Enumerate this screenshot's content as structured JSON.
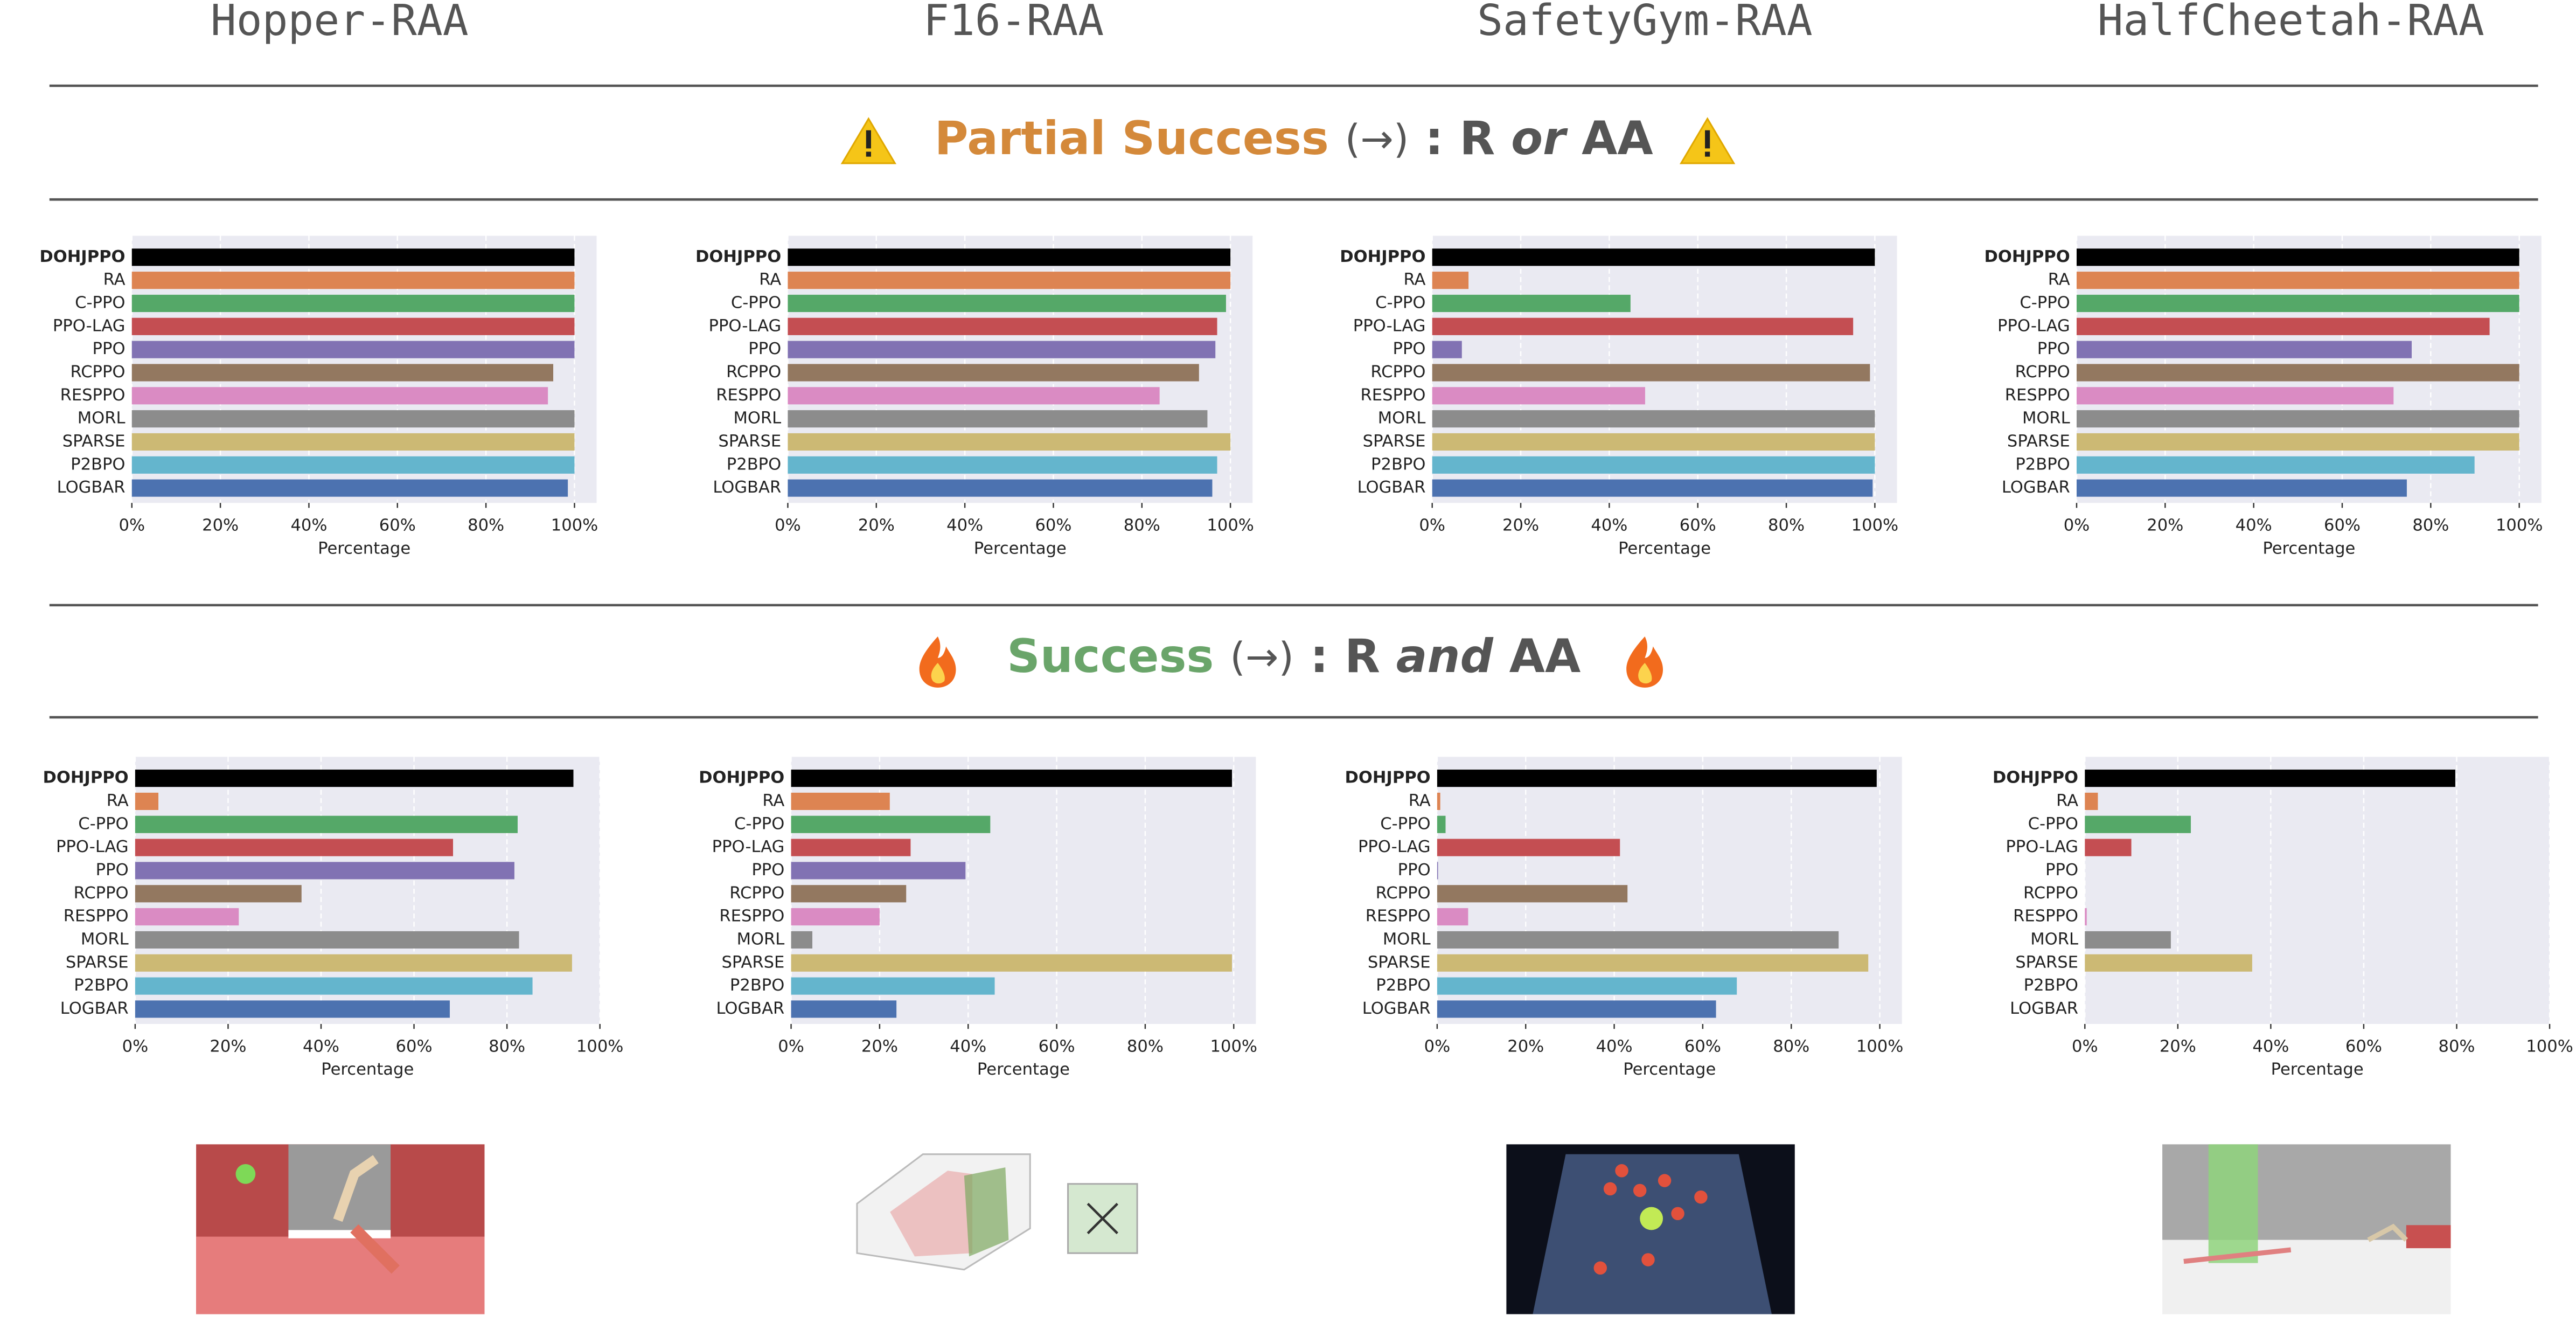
{
  "columns": [
    "Hopper-RAA",
    "F16-RAA",
    "SafetyGym-RAA",
    "HalfCheetah-RAA"
  ],
  "sections": [
    {
      "label": "Partial Success",
      "arrow": "(→)",
      "left": ": R",
      "connector": "or",
      "right": "AA"
    },
    {
      "label": "Success",
      "arrow": "(→)",
      "left": ": R",
      "connector": "and",
      "right": "AA"
    }
  ],
  "chart_data": [
    {
      "type": "barh",
      "categories": [
        "DOHJPPO",
        "RA",
        "C-PPO",
        "PPO-LAG",
        "PPO",
        "RCPPO",
        "RESPPO",
        "MORL",
        "SPARSE",
        "P2BPO",
        "LOGBAR"
      ],
      "values": [
        100,
        100,
        100,
        100,
        100,
        95.2,
        94,
        100,
        100,
        100,
        98.5
      ],
      "colors": [
        "#000000",
        "#dd8452",
        "#55a868",
        "#c44e52",
        "#8172b3",
        "#937860",
        "#da8bc3",
        "#8c8c8c",
        "#ccb974",
        "#64b5cd",
        "#4c72b0"
      ],
      "xlabel": "Percentage",
      "xlim": [
        0,
        105
      ],
      "grid": true,
      "xticks": [
        {
          "value": 0,
          "label": "0%"
        },
        {
          "value": 20,
          "label": "20%"
        },
        {
          "value": 40,
          "label": "40%"
        },
        {
          "value": 60,
          "label": "60%"
        },
        {
          "value": 80,
          "label": "80%"
        },
        {
          "value": 100,
          "label": "100%"
        }
      ]
    },
    {
      "type": "barh",
      "categories": [
        "DOHJPPO",
        "RA",
        "C-PPO",
        "PPO-LAG",
        "PPO",
        "RCPPO",
        "RESPPO",
        "MORL",
        "SPARSE",
        "P2BPO",
        "LOGBAR"
      ],
      "values": [
        100,
        100,
        99,
        97,
        96.6,
        92.9,
        84,
        94.8,
        100,
        97,
        95.9
      ],
      "colors": [
        "#000000",
        "#dd8452",
        "#55a868",
        "#c44e52",
        "#8172b3",
        "#937860",
        "#da8bc3",
        "#8c8c8c",
        "#ccb974",
        "#64b5cd",
        "#4c72b0"
      ],
      "xlabel": "Percentage",
      "xlim": [
        0,
        105
      ],
      "grid": true,
      "xticks": [
        {
          "value": 0,
          "label": "0%"
        },
        {
          "value": 20,
          "label": "20%"
        },
        {
          "value": 40,
          "label": "40%"
        },
        {
          "value": 60,
          "label": "60%"
        },
        {
          "value": 80,
          "label": "80%"
        },
        {
          "value": 100,
          "label": "100%"
        }
      ]
    },
    {
      "type": "barh",
      "categories": [
        "DOHJPPO",
        "RA",
        "C-PPO",
        "PPO-LAG",
        "PPO",
        "RCPPO",
        "RESPPO",
        "MORL",
        "SPARSE",
        "P2BPO",
        "LOGBAR"
      ],
      "values": [
        100,
        8.2,
        44.8,
        95.1,
        6.7,
        98.9,
        48.1,
        100,
        100,
        100,
        99.5
      ],
      "colors": [
        "#000000",
        "#dd8452",
        "#55a868",
        "#c44e52",
        "#8172b3",
        "#937860",
        "#da8bc3",
        "#8c8c8c",
        "#ccb974",
        "#64b5cd",
        "#4c72b0"
      ],
      "xlabel": "Percentage",
      "xlim": [
        0,
        105
      ],
      "grid": true,
      "xticks": [
        {
          "value": 0,
          "label": "0%"
        },
        {
          "value": 20,
          "label": "20%"
        },
        {
          "value": 40,
          "label": "40%"
        },
        {
          "value": 60,
          "label": "60%"
        },
        {
          "value": 80,
          "label": "80%"
        },
        {
          "value": 100,
          "label": "100%"
        }
      ]
    },
    {
      "type": "barh",
      "categories": [
        "DOHJPPO",
        "RA",
        "C-PPO",
        "PPO-LAG",
        "PPO",
        "RCPPO",
        "RESPPO",
        "MORL",
        "SPARSE",
        "P2BPO",
        "LOGBAR"
      ],
      "values": [
        100,
        100,
        100,
        93.3,
        75.7,
        100,
        71.6,
        100,
        100,
        89.9,
        74.6
      ],
      "colors": [
        "#000000",
        "#dd8452",
        "#55a868",
        "#c44e52",
        "#8172b3",
        "#937860",
        "#da8bc3",
        "#8c8c8c",
        "#ccb974",
        "#64b5cd",
        "#4c72b0"
      ],
      "xlabel": "Percentage",
      "xlim": [
        0,
        105
      ],
      "grid": true,
      "xticks": [
        {
          "value": 0,
          "label": "0%"
        },
        {
          "value": 20,
          "label": "20%"
        },
        {
          "value": 40,
          "label": "40%"
        },
        {
          "value": 60,
          "label": "60%"
        },
        {
          "value": 80,
          "label": "80%"
        },
        {
          "value": 100,
          "label": "100%"
        }
      ]
    },
    {
      "type": "barh",
      "categories": [
        "DOHJPPO",
        "RA",
        "C-PPO",
        "PPO-LAG",
        "PPO",
        "RCPPO",
        "RESPPO",
        "MORL",
        "SPARSE",
        "P2BPO",
        "LOGBAR"
      ],
      "values": [
        94.3,
        5,
        82.3,
        68.4,
        81.6,
        35.8,
        22.3,
        82.6,
        94,
        85.5,
        67.7
      ],
      "colors": [
        "#000000",
        "#dd8452",
        "#55a868",
        "#c44e52",
        "#8172b3",
        "#937860",
        "#da8bc3",
        "#8c8c8c",
        "#ccb974",
        "#64b5cd",
        "#4c72b0"
      ],
      "xlabel": "Percentage",
      "xlim": [
        0,
        100
      ],
      "grid": true,
      "xticks": [
        {
          "value": 0,
          "label": "0%"
        },
        {
          "value": 20,
          "label": "20%"
        },
        {
          "value": 40,
          "label": "40%"
        },
        {
          "value": 60,
          "label": "60%"
        },
        {
          "value": 80,
          "label": "80%"
        },
        {
          "value": 100,
          "label": "100%"
        }
      ]
    },
    {
      "type": "barh",
      "categories": [
        "DOHJPPO",
        "RA",
        "C-PPO",
        "PPO-LAG",
        "PPO",
        "RCPPO",
        "RESPPO",
        "MORL",
        "SPARSE",
        "P2BPO",
        "LOGBAR"
      ],
      "values": [
        99.6,
        22.3,
        45,
        27,
        39.4,
        26,
        20,
        4.8,
        99.6,
        46,
        23.8
      ],
      "colors": [
        "#000000",
        "#dd8452",
        "#55a868",
        "#c44e52",
        "#8172b3",
        "#937860",
        "#da8bc3",
        "#8c8c8c",
        "#ccb974",
        "#64b5cd",
        "#4c72b0"
      ],
      "xlabel": "Percentage",
      "xlim": [
        0,
        105
      ],
      "grid": true,
      "xticks": [
        {
          "value": 0,
          "label": "0%"
        },
        {
          "value": 20,
          "label": "20%"
        },
        {
          "value": 40,
          "label": "40%"
        },
        {
          "value": 60,
          "label": "60%"
        },
        {
          "value": 80,
          "label": "80%"
        },
        {
          "value": 100,
          "label": "100%"
        }
      ]
    },
    {
      "type": "barh",
      "categories": [
        "DOHJPPO",
        "RA",
        "C-PPO",
        "PPO-LAG",
        "PPO",
        "RCPPO",
        "RESPPO",
        "MORL",
        "SPARSE",
        "P2BPO",
        "LOGBAR"
      ],
      "values": [
        99.3,
        0.7,
        1.9,
        41.3,
        0.2,
        43,
        7,
        90.7,
        97.4,
        67.7,
        63
      ],
      "colors": [
        "#000000",
        "#dd8452",
        "#55a868",
        "#c44e52",
        "#8172b3",
        "#937860",
        "#da8bc3",
        "#8c8c8c",
        "#ccb974",
        "#64b5cd",
        "#4c72b0"
      ],
      "xlabel": "Percentage",
      "xlim": [
        0,
        105
      ],
      "grid": true,
      "xticks": [
        {
          "value": 0,
          "label": "0%"
        },
        {
          "value": 20,
          "label": "20%"
        },
        {
          "value": 40,
          "label": "40%"
        },
        {
          "value": 60,
          "label": "60%"
        },
        {
          "value": 80,
          "label": "80%"
        },
        {
          "value": 100,
          "label": "100%"
        }
      ]
    },
    {
      "type": "barh",
      "categories": [
        "DOHJPPO",
        "RA",
        "C-PPO",
        "PPO-LAG",
        "PPO",
        "RCPPO",
        "RESPPO",
        "MORL",
        "SPARSE",
        "P2BPO",
        "LOGBAR"
      ],
      "values": [
        79.7,
        2.8,
        22.8,
        10,
        0,
        0,
        0.4,
        18.5,
        36,
        0,
        0
      ],
      "colors": [
        "#000000",
        "#dd8452",
        "#55a868",
        "#c44e52",
        "#8172b3",
        "#937860",
        "#da8bc3",
        "#8c8c8c",
        "#ccb974",
        "#64b5cd",
        "#4c72b0"
      ],
      "xlabel": "Percentage",
      "xlim": [
        0,
        100
      ],
      "grid": true,
      "xticks": [
        {
          "value": 0,
          "label": "0%"
        },
        {
          "value": 20,
          "label": "20%"
        },
        {
          "value": 40,
          "label": "40%"
        },
        {
          "value": 60,
          "label": "60%"
        },
        {
          "value": 80,
          "label": "80%"
        },
        {
          "value": 100,
          "label": "100%"
        }
      ]
    }
  ]
}
